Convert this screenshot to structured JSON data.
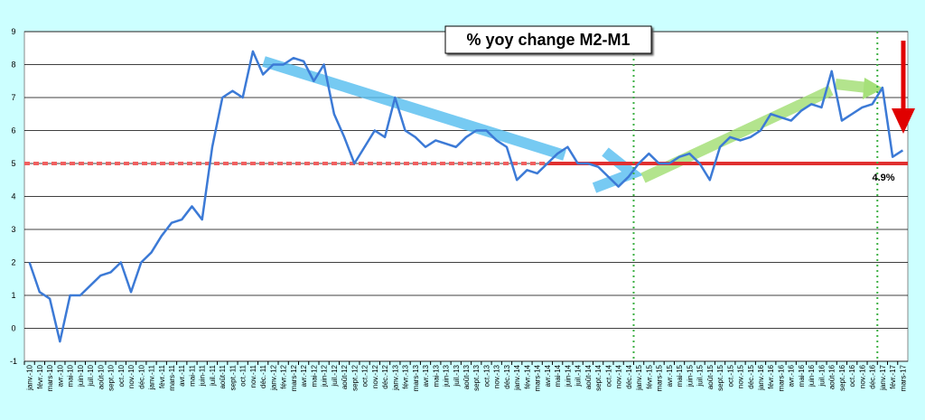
{
  "chart_data": {
    "type": "line",
    "title": "% yoy change M2-M1",
    "categories": [
      "janv.-10",
      "févr.-10",
      "mars-10",
      "avr.-10",
      "mai-10",
      "juin-10",
      "juil.-10",
      "août-10",
      "sept.-10",
      "oct.-10",
      "nov.-10",
      "déc.-10",
      "janv.-11",
      "févr.-11",
      "mars-11",
      "avr.-11",
      "mai-11",
      "juin-11",
      "juil.-11",
      "août-11",
      "sept.-11",
      "oct.-11",
      "nov.-11",
      "déc.-11",
      "janv.-12",
      "févr.-12",
      "mars-12",
      "avr.-12",
      "mai-12",
      "juin-12",
      "juil.-12",
      "août-12",
      "sept.-12",
      "oct.-12",
      "nov.-12",
      "déc.-12",
      "janv.-13",
      "févr.-13",
      "mars-13",
      "avr.-13",
      "mai-13",
      "juin-13",
      "juil.-13",
      "août-13",
      "sept.-13",
      "oct.-13",
      "nov.-13",
      "déc.-13",
      "janv.-14",
      "févr.-14",
      "mars-14",
      "avr.-14",
      "mai-14",
      "juin-14",
      "juil.-14",
      "août-14",
      "sept.-14",
      "oct.-14",
      "nov.-14",
      "déc.-14",
      "janv.-15",
      "févr.-15",
      "mars-15",
      "avr.-15",
      "mai-15",
      "juin-15",
      "juil.-15",
      "août-15",
      "sept.-15",
      "oct.-15",
      "nov.-15",
      "déc.-15",
      "janv.-16",
      "févr.-16",
      "mars-16",
      "avr.-16",
      "mai-16",
      "juin-16",
      "juil.-16",
      "août-16",
      "sept.-16",
      "oct.-16",
      "nov.-16",
      "déc.-16",
      "janv.-17",
      "févr.-17",
      "mars-17"
    ],
    "series": [
      {
        "name": "M2-M1",
        "color": "#3c7ad6",
        "values": [
          2.0,
          1.1,
          0.9,
          -0.4,
          1.0,
          1.0,
          1.3,
          1.6,
          1.7,
          2.0,
          1.1,
          2.0,
          2.3,
          2.8,
          3.2,
          3.3,
          3.7,
          3.3,
          5.5,
          7.0,
          7.2,
          7.0,
          8.4,
          7.7,
          8.0,
          8.0,
          8.2,
          8.1,
          7.5,
          8.0,
          6.5,
          5.8,
          5.0,
          5.5,
          6.0,
          5.8,
          7.0,
          6.0,
          5.8,
          5.5,
          5.7,
          5.6,
          5.5,
          5.8,
          6.0,
          6.0,
          5.7,
          5.5,
          4.5,
          4.8,
          4.7,
          5.0,
          5.3,
          5.5,
          5.0,
          5.0,
          4.9,
          4.6,
          4.3,
          4.6,
          5.0,
          5.3,
          5.0,
          5.0,
          5.2,
          5.3,
          5.0,
          4.5,
          5.5,
          5.8,
          5.7,
          5.8,
          6.0,
          6.5,
          6.4,
          6.3,
          6.6,
          6.8,
          6.7,
          7.8,
          6.3,
          6.5,
          6.7,
          6.8,
          7.3,
          5.2,
          5.4
        ]
      }
    ],
    "ylim": [
      -1,
      9
    ],
    "yticks": [
      -1,
      0,
      1,
      2,
      3,
      4,
      5,
      6,
      7,
      8,
      9
    ],
    "grid": true,
    "reference_line": 5,
    "vlines": [
      "janv.-15",
      "janv.-17"
    ],
    "annotations": [
      "4.9%"
    ]
  }
}
